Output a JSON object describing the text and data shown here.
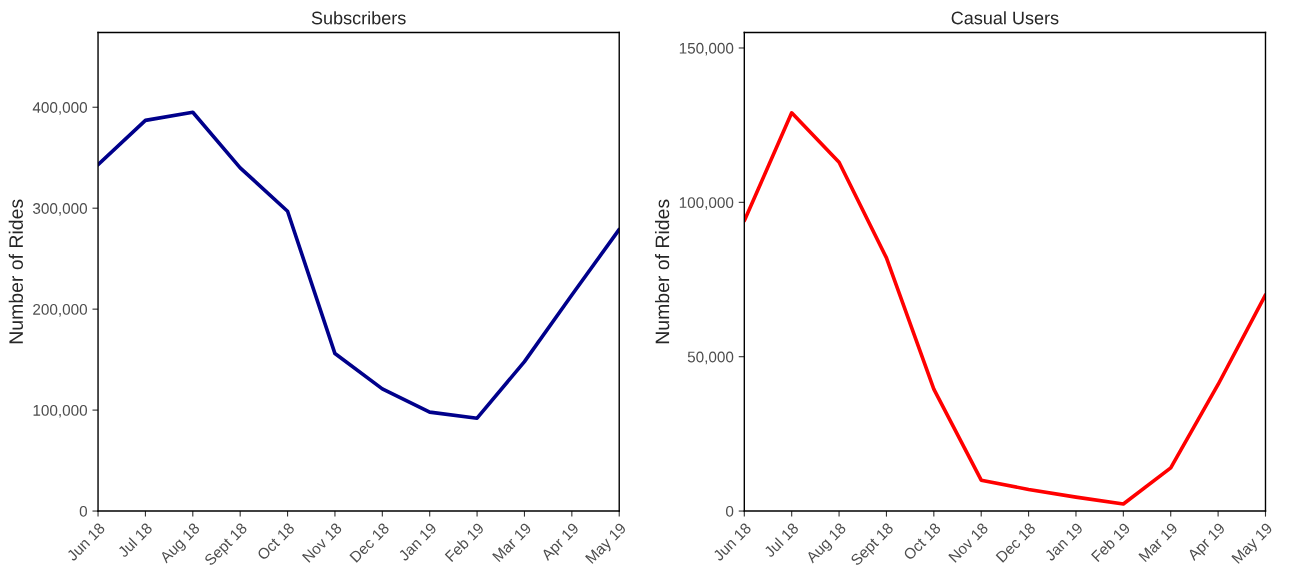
{
  "chart_data": [
    {
      "type": "line",
      "title": "Subscribers",
      "ylabel": "Number of Rides",
      "categories": [
        "Jun 18",
        "Jul 18",
        "Aug 18",
        "Sept 18",
        "Oct 18",
        "Nov 18",
        "Dec 18",
        "Jan 19",
        "Feb 19",
        "Mar 19",
        "Apr 19",
        "May 19"
      ],
      "series": [
        {
          "color": "#00008b",
          "values": [
            343000,
            387000,
            395000,
            340000,
            297000,
            156000,
            121000,
            98000,
            92000,
            148000,
            214000,
            279000
          ]
        }
      ],
      "ylim": [
        0,
        474000
      ],
      "yticks": [
        {
          "value": 0,
          "label": "0"
        },
        {
          "value": 100000,
          "label": "100,000"
        },
        {
          "value": 200000,
          "label": "200,000"
        },
        {
          "value": 300000,
          "label": "300,000"
        },
        {
          "value": 400000,
          "label": "400,000"
        }
      ]
    },
    {
      "type": "line",
      "title": "Casual Users",
      "ylabel": "Number of Rides",
      "categories": [
        "Jun 18",
        "Jul 18",
        "Aug 18",
        "Sept 18",
        "Oct 18",
        "Nov 18",
        "Dec 18",
        "Jan 19",
        "Feb 19",
        "Mar 19",
        "Apr 19",
        "May 19"
      ],
      "series": [
        {
          "color": "#ff0000",
          "values": [
            94000,
            129000,
            113000,
            82000,
            39500,
            10000,
            7000,
            4500,
            2300,
            14000,
            41000,
            70000
          ]
        }
      ],
      "ylim": [
        0,
        155000
      ],
      "yticks": [
        {
          "value": 0,
          "label": "0"
        },
        {
          "value": 50000,
          "label": "50,000"
        },
        {
          "value": 100000,
          "label": "100,000"
        },
        {
          "value": 150000,
          "label": "150,000"
        }
      ]
    }
  ]
}
